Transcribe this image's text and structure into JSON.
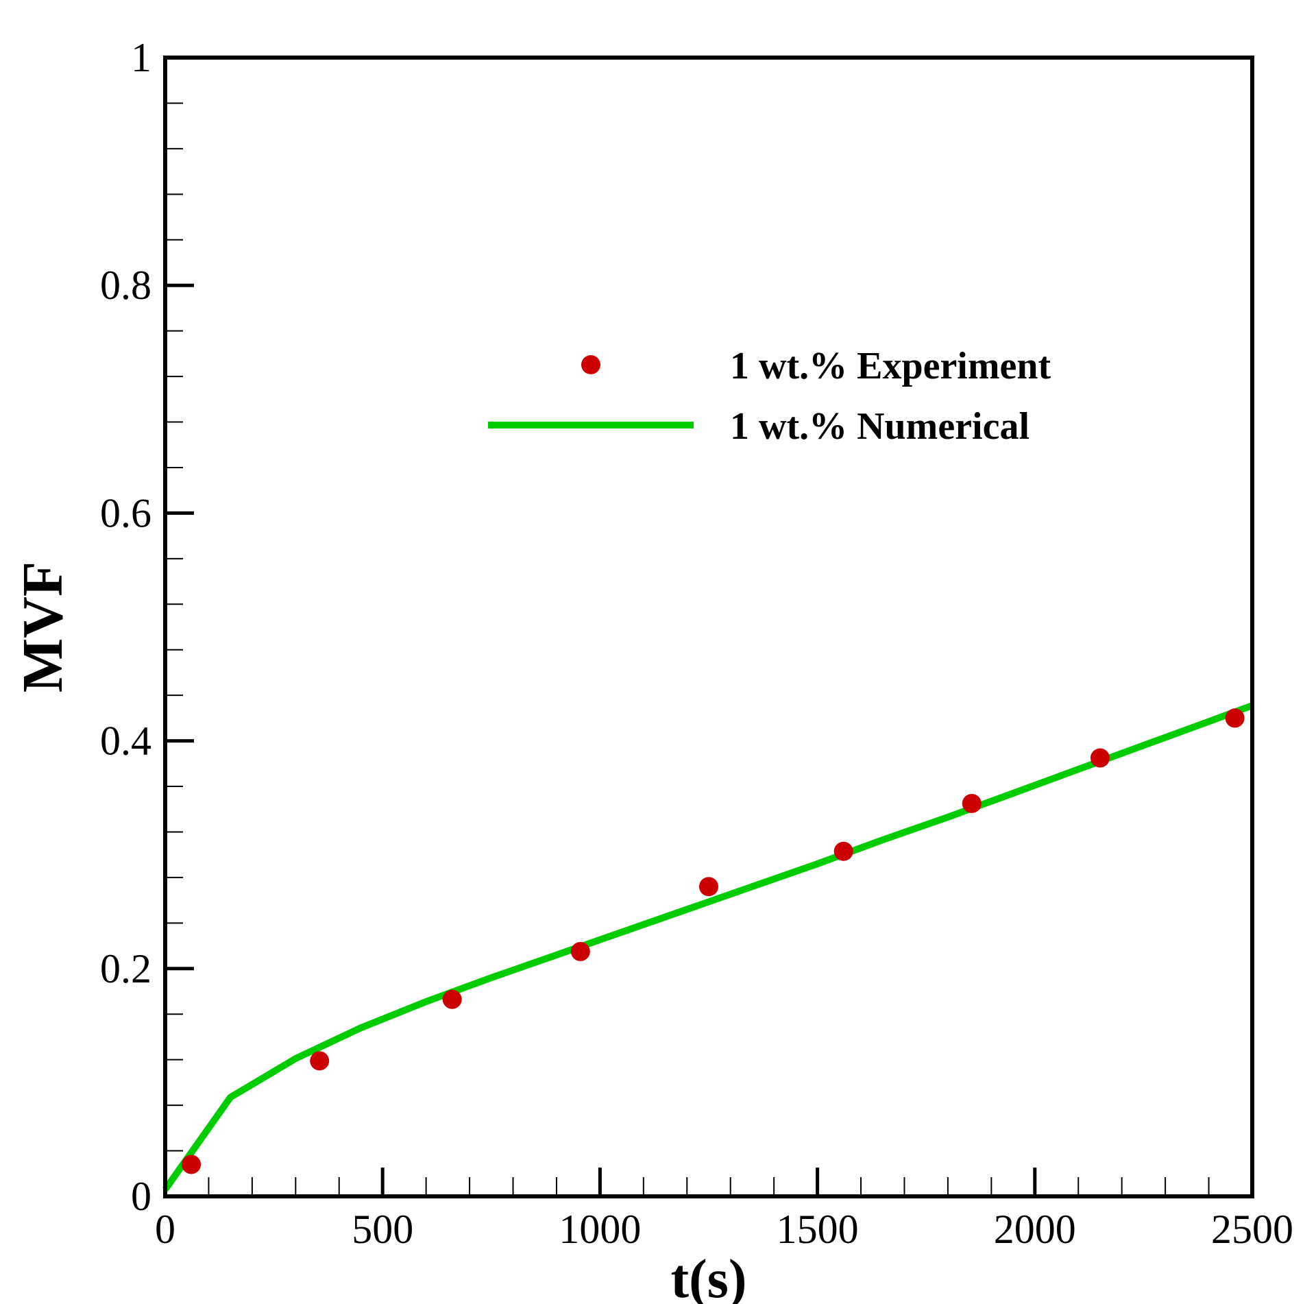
{
  "chart_data": {
    "type": "scatter",
    "title": "",
    "xlabel": "t(s)",
    "ylabel": "MVF",
    "xlim": [
      0,
      2500
    ],
    "ylim": [
      0,
      1
    ],
    "x_ticks": [
      0,
      500,
      1000,
      1500,
      2000,
      2500
    ],
    "x_tick_labels": [
      "0",
      "500",
      "1000",
      "1500",
      "2000",
      "2500"
    ],
    "x_minor_step": 100,
    "y_ticks": [
      0,
      0.2,
      0.4,
      0.6,
      0.8,
      1
    ],
    "y_tick_labels": [
      "0",
      "0.2",
      "0.4",
      "0.6",
      "0.8",
      "1"
    ],
    "y_minor_step": 0.04,
    "grid": false,
    "legend_position": "upper-right",
    "series": [
      {
        "name": "1 wt.% Experiment",
        "type": "scatter",
        "color": "#cc0000",
        "x": [
          60,
          355,
          660,
          955,
          1250,
          1560,
          1855,
          2150,
          2460
        ],
        "y": [
          0.028,
          0.119,
          0.173,
          0.215,
          0.272,
          0.303,
          0.345,
          0.385,
          0.42
        ]
      },
      {
        "name": "1 wt.% Numerical",
        "type": "line",
        "color": "#00cc00",
        "x": [
          0,
          150,
          300,
          450,
          600,
          750,
          900,
          1050,
          1200,
          1350,
          1500,
          1650,
          1800,
          1950,
          2100,
          2250,
          2400,
          2500
        ],
        "y": [
          0.006,
          0.087,
          0.121,
          0.148,
          0.171,
          0.192,
          0.212,
          0.232,
          0.252,
          0.272,
          0.292,
          0.313,
          0.333,
          0.354,
          0.375,
          0.396,
          0.417,
          0.431
        ]
      }
    ]
  }
}
